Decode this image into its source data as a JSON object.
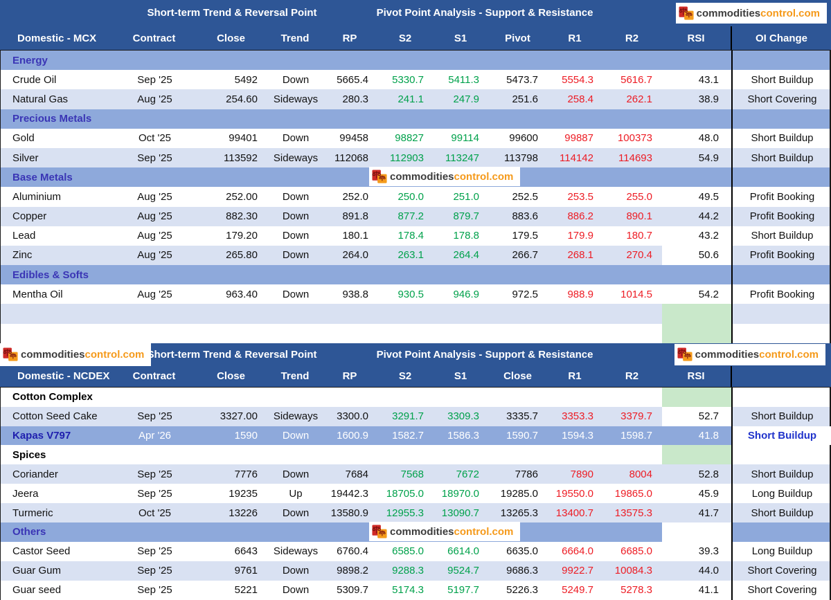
{
  "brand": {
    "word1": "commodities",
    "word2": "control.com",
    "icon": "scales-icon"
  },
  "colors": {
    "header_blue": "#2e5696",
    "section_band_blue": "#8ea9db",
    "row_alt_blue": "#d9e1f2",
    "support_green": "#00a14b",
    "resistance_red": "#ed1c24",
    "rsi_highlight_green": "#c9e8ca",
    "section_text_indigo": "#3a35b5",
    "logo_orange": "#f59a1b"
  },
  "tables": [
    {
      "name_header": "Domestic - MCX",
      "group_header_left": "Short-term Trend & Reversal Point",
      "group_header_right": "Pivot Point Analysis - Support & Resistance",
      "columns": [
        "Contract",
        "Close",
        "Trend",
        "RP",
        "S2",
        "S1",
        "Pivot",
        "R1",
        "R2",
        "RSI",
        "OI Change"
      ],
      "rows": [
        {
          "type": "section",
          "style": "band",
          "label": "Energy"
        },
        {
          "type": "data",
          "shade": "white",
          "name": "Crude Oil",
          "contract": "Sep '25",
          "close": "5492",
          "trend": "Down",
          "rp": "5665.4",
          "s2": "5330.7",
          "s1": "5411.3",
          "pivot": "5473.7",
          "r1": "5554.3",
          "r2": "5616.7",
          "rsi": "43.1",
          "oi": "Short Buildup"
        },
        {
          "type": "data",
          "shade": "alt",
          "name": "Natural Gas",
          "contract": "Aug '25",
          "close": "254.60",
          "trend": "Sideways",
          "rp": "280.3",
          "s2": "241.1",
          "s1": "247.9",
          "pivot": "251.6",
          "r1": "258.4",
          "r2": "262.1",
          "rsi": "38.9",
          "oi": "Short Covering"
        },
        {
          "type": "section",
          "style": "band",
          "label": "Precious Metals"
        },
        {
          "type": "data",
          "shade": "white",
          "name": "Gold",
          "contract": "Oct '25",
          "close": "99401",
          "trend": "Down",
          "rp": "99458",
          "s2": "98827",
          "s1": "99114",
          "pivot": "99600",
          "r1": "99887",
          "r2": "100373",
          "rsi": "48.0",
          "oi": "Short Buildup"
        },
        {
          "type": "data",
          "shade": "alt",
          "name": "Silver",
          "contract": "Sep '25",
          "close": "113592",
          "trend": "Sideways",
          "rp": "112068",
          "s2": "112903",
          "s1": "113247",
          "pivot": "113798",
          "r1": "114142",
          "r2": "114693",
          "rsi": "54.9",
          "oi": "Short Buildup"
        },
        {
          "type": "section",
          "style": "band",
          "label": "Base Metals",
          "watermark": true
        },
        {
          "type": "data",
          "shade": "white",
          "name": "Aluminium",
          "contract": "Aug '25",
          "close": "252.00",
          "trend": "Down",
          "rp": "252.0",
          "s2": "250.0",
          "s1": "251.0",
          "pivot": "252.5",
          "r1": "253.5",
          "r2": "255.0",
          "rsi": "49.5",
          "oi": "Profit Booking"
        },
        {
          "type": "data",
          "shade": "alt",
          "name": "Copper",
          "contract": "Aug '25",
          "close": "882.30",
          "trend": "Down",
          "rp": "891.8",
          "s2": "877.2",
          "s1": "879.7",
          "pivot": "883.6",
          "r1": "886.2",
          "r2": "890.1",
          "rsi": "44.2",
          "oi": "Profit Booking"
        },
        {
          "type": "data",
          "shade": "white",
          "name": "Lead",
          "contract": "Aug '25",
          "close": "179.20",
          "trend": "Down",
          "rp": "180.1",
          "s2": "178.4",
          "s1": "178.8",
          "pivot": "179.5",
          "r1": "179.9",
          "r2": "180.7",
          "rsi": "43.2",
          "oi": "Short Buildup"
        },
        {
          "type": "data",
          "shade": "alt",
          "name": "Zinc",
          "contract": "Aug '25",
          "close": "265.80",
          "trend": "Down",
          "rp": "264.0",
          "s2": "263.1",
          "s1": "264.4",
          "pivot": "266.7",
          "r1": "268.1",
          "r2": "270.4",
          "rsi": "50.6",
          "oi": "Profit Booking",
          "rsi_bg": "white"
        },
        {
          "type": "section",
          "style": "band",
          "label": "Edibles & Softs"
        },
        {
          "type": "data",
          "shade": "white",
          "name": "Mentha Oil",
          "contract": "Aug '25",
          "close": "963.40",
          "trend": "Down",
          "rp": "938.8",
          "s2": "930.5",
          "s1": "946.9",
          "pivot": "972.5",
          "r1": "988.9",
          "r2": "1014.5",
          "rsi": "54.2",
          "oi": "Profit Booking"
        },
        {
          "type": "empty",
          "shade": "alt",
          "rsi_bg": "green"
        },
        {
          "type": "empty",
          "shade": "white",
          "rsi_bg": "green"
        }
      ]
    },
    {
      "name_header": "Domestic - NCDEX",
      "group_header_left": "Short-term Trend & Reversal Point",
      "group_header_right": "Pivot Point Analysis - Support & Resistance",
      "columns": [
        "Contract",
        "Close",
        "Trend",
        "RP",
        "S2",
        "S1",
        "Close",
        "R1",
        "R2",
        "RSI",
        ""
      ],
      "rows": [
        {
          "type": "section",
          "style": "plain",
          "label": "Cotton Complex",
          "rsi_bg": "green"
        },
        {
          "type": "data",
          "shade": "alt",
          "name": "Cotton Seed Cake",
          "contract": "Sep '25",
          "close": "3327.00",
          "trend": "Sideways",
          "rp": "3300.0",
          "s2": "3291.7",
          "s1": "3309.3",
          "pivot": "3335.7",
          "r1": "3353.3",
          "r2": "3379.7",
          "rsi": "52.7",
          "oi": "Short Buildup",
          "rsi_bg": "white"
        },
        {
          "type": "data",
          "shade": "white",
          "highlight": true,
          "name": "Kapas V797",
          "contract": "Apr '26",
          "close": "1590",
          "trend": "Down",
          "rp": "1600.9",
          "s2": "1582.7",
          "s1": "1586.3",
          "pivot": "1590.7",
          "r1": "1594.3",
          "r2": "1598.7",
          "rsi": "41.8",
          "oi": "Short Buildup"
        },
        {
          "type": "section",
          "style": "plain",
          "label": "Spices",
          "rsi_bg": "green"
        },
        {
          "type": "data",
          "shade": "alt",
          "name": "Coriander",
          "contract": "Sep '25",
          "close": "7776",
          "trend": "Down",
          "rp": "7684",
          "s2": "7568",
          "s1": "7672",
          "pivot": "7786",
          "r1": "7890",
          "r2": "8004",
          "rsi": "52.8",
          "oi": "Short Buildup"
        },
        {
          "type": "data",
          "shade": "white",
          "name": "Jeera",
          "contract": "Sep '25",
          "close": "19235",
          "trend": "Up",
          "rp": "19442.3",
          "s2": "18705.0",
          "s1": "18970.0",
          "pivot": "19285.0",
          "r1": "19550.0",
          "r2": "19865.0",
          "rsi": "45.9",
          "oi": "Long Buildup"
        },
        {
          "type": "data",
          "shade": "alt",
          "name": "Turmeric",
          "contract": "Oct '25",
          "close": "13226",
          "trend": "Down",
          "rp": "13580.9",
          "s2": "12955.3",
          "s1": "13090.7",
          "pivot": "13265.3",
          "r1": "13400.7",
          "r2": "13575.3",
          "rsi": "41.7",
          "oi": "Short Buildup"
        },
        {
          "type": "section",
          "style": "band",
          "label": "Others",
          "watermark": true,
          "rsi_bg": "white"
        },
        {
          "type": "data",
          "shade": "white",
          "name": "Castor Seed",
          "contract": "Sep '25",
          "close": "6643",
          "trend": "Sideways",
          "rp": "6760.4",
          "s2": "6585.0",
          "s1": "6614.0",
          "pivot": "6635.0",
          "r1": "6664.0",
          "r2": "6685.0",
          "rsi": "39.3",
          "oi": "Long Buildup"
        },
        {
          "type": "data",
          "shade": "alt",
          "name": "Guar Gum",
          "contract": "Sep '25",
          "close": "9761",
          "trend": "Down",
          "rp": "9898.2",
          "s2": "9288.3",
          "s1": "9524.7",
          "pivot": "9686.3",
          "r1": "9922.7",
          "r2": "10084.3",
          "rsi": "44.0",
          "oi": "Short Covering"
        },
        {
          "type": "data",
          "shade": "white",
          "name": "Guar seed",
          "contract": "Sep '25",
          "close": "5221",
          "trend": "Down",
          "rp": "5309.7",
          "s2": "5174.3",
          "s1": "5197.7",
          "pivot": "5226.3",
          "r1": "5249.7",
          "r2": "5278.3",
          "rsi": "41.1",
          "oi": "Short Covering"
        }
      ]
    }
  ]
}
